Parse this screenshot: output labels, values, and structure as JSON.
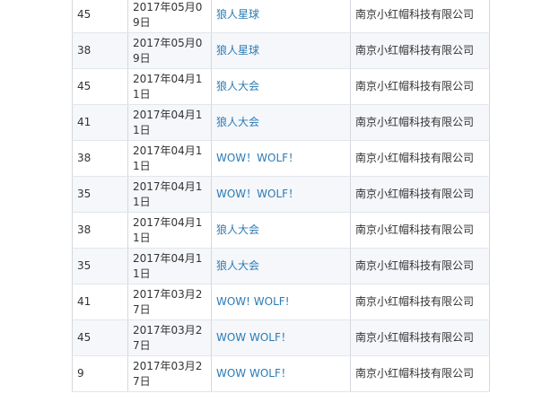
{
  "table": {
    "rows": [
      [
        "45",
        "2017年05月09日",
        "狼人星球",
        "南京小红帽科技有限公司"
      ],
      [
        "38",
        "2017年05月09日",
        "狼人星球",
        "南京小红帽科技有限公司"
      ],
      [
        "45",
        "2017年04月11日",
        "狼人大会",
        "南京小红帽科技有限公司"
      ],
      [
        "41",
        "2017年04月11日",
        "狼人大会",
        "南京小红帽科技有限公司"
      ],
      [
        "38",
        "2017年04月11日",
        "WOW！WOLF！",
        "南京小红帽科技有限公司"
      ],
      [
        "35",
        "2017年04月11日",
        "WOW！WOLF！",
        "南京小红帽科技有限公司"
      ],
      [
        "38",
        "2017年04月11日",
        "狼人大会",
        "南京小红帽科技有限公司"
      ],
      [
        "35",
        "2017年04月11日",
        "狼人大会",
        "南京小红帽科技有限公司"
      ],
      [
        "41",
        "2017年03月27日",
        "WOW! WOLF!",
        "南京小红帽科技有限公司"
      ],
      [
        "45",
        "2017年03月27日",
        "WOW WOLF！",
        "南京小红帽科技有限公司"
      ],
      [
        "9",
        "2017年03月27日",
        "WOW WOLF！",
        "南京小红帽科技有限公司"
      ]
    ]
  }
}
